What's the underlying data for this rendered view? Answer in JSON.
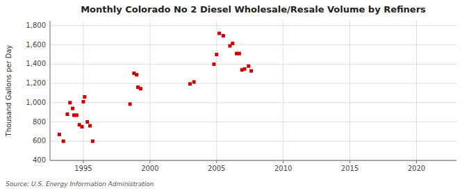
{
  "chart_data": {
    "type": "scatter",
    "title": "Monthly Colorado No 2 Diesel Wholesale/Resale Volume by Refiners",
    "ylabel": "Thousand Gallons per Day",
    "source": "Source: U.S. Energy Information Administration",
    "color": "#cc0000",
    "marker": "square",
    "grid": true,
    "xlim": [
      1992.5,
      2023
    ],
    "ylim": [
      400,
      1850
    ],
    "xticks": [
      1995,
      2000,
      2005,
      2010,
      2015,
      2020
    ],
    "yticks": [
      400,
      600,
      800,
      {
        "value": 1000,
        "label": "1,000"
      },
      {
        "value": 1200,
        "label": "1,200"
      },
      {
        "value": 1400,
        "label": "1,400"
      },
      {
        "value": 1600,
        "label": "1,600"
      },
      {
        "value": 1800,
        "label": "1,800"
      }
    ],
    "x": [
      1993.2,
      1993.5,
      1993.8,
      1994.0,
      1994.2,
      1994.3,
      1994.5,
      1994.7,
      1994.9,
      1995.0,
      1995.1,
      1995.3,
      1995.5,
      1995.7,
      1998.5,
      1998.8,
      1999.0,
      1999.1,
      1999.3,
      2003.0,
      2003.3,
      2004.8,
      2005.0,
      2005.2,
      2005.5,
      2006.0,
      2006.2,
      2006.5,
      2006.7,
      2006.9,
      2007.1,
      2007.4,
      2007.6
    ],
    "values": [
      670,
      600,
      880,
      1000,
      940,
      870,
      870,
      770,
      750,
      1010,
      1060,
      800,
      760,
      600,
      985,
      1305,
      1290,
      1160,
      1145,
      1195,
      1215,
      1400,
      1500,
      1720,
      1695,
      1590,
      1615,
      1510,
      1510,
      1340,
      1350,
      1380,
      1330
    ]
  }
}
